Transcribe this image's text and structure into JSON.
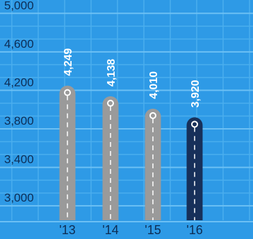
{
  "chart_data": {
    "type": "bar",
    "title": "",
    "xlabel": "",
    "ylabel": "",
    "categories": [
      "'13",
      "'14",
      "'15",
      "'16"
    ],
    "values": [
      4249,
      4138,
      4010,
      3920
    ],
    "value_labels": [
      "4,249",
      "4,138",
      "4,010",
      "3,920"
    ],
    "yticks": [
      3000,
      3400,
      3800,
      4200,
      4600,
      5000
    ],
    "ytick_labels": [
      "3,000",
      "3,400",
      "3,800",
      "4,200",
      "4,600",
      "5,000"
    ],
    "ylim": [
      2850,
      5110
    ],
    "grid": true,
    "highlight_index": 3
  },
  "colors": {
    "background": "#2e9ae6",
    "grid_major": "#6cc0f4",
    "grid_minor": "#4aaeee",
    "bar": "#9a9a9a",
    "bar_highlight": "#17305a",
    "label": "#0d2d55",
    "value_label": "#ffffff"
  }
}
